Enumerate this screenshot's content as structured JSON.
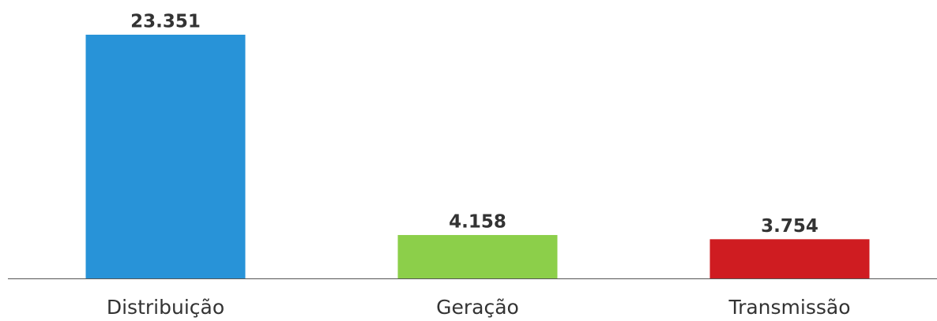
{
  "chart_data": {
    "type": "bar",
    "categories": [
      "Distribuição",
      "Geração",
      "Transmissão"
    ],
    "values": [
      23351,
      4158,
      3754
    ],
    "value_labels": [
      "23.351",
      "4.158",
      "3.754"
    ],
    "colors": [
      "#2893d8",
      "#8ccf4a",
      "#cf1c21"
    ]
  }
}
